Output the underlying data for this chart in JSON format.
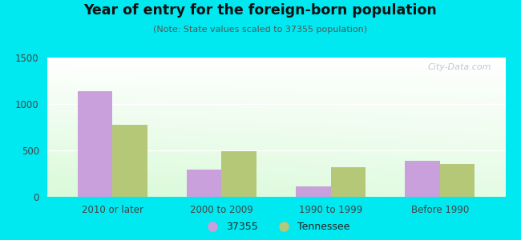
{
  "title": "Year of entry for the foreign-born population",
  "subtitle": "(Note: State values scaled to 37355 population)",
  "categories": [
    "2010 or later",
    "2000 to 2009",
    "1990 to 1999",
    "Before 1990"
  ],
  "values_37355": [
    1140,
    290,
    115,
    385
  ],
  "values_tennessee": [
    775,
    490,
    320,
    350
  ],
  "color_37355": "#c9a0dc",
  "color_tennessee": "#b5c878",
  "background_outer": "#00e8f0",
  "ylim": [
    0,
    1500
  ],
  "yticks": [
    0,
    500,
    1000,
    1500
  ],
  "bar_width": 0.32,
  "legend_label_37355": "37355",
  "legend_label_tennessee": "Tennessee",
  "watermark": "City-Data.com"
}
